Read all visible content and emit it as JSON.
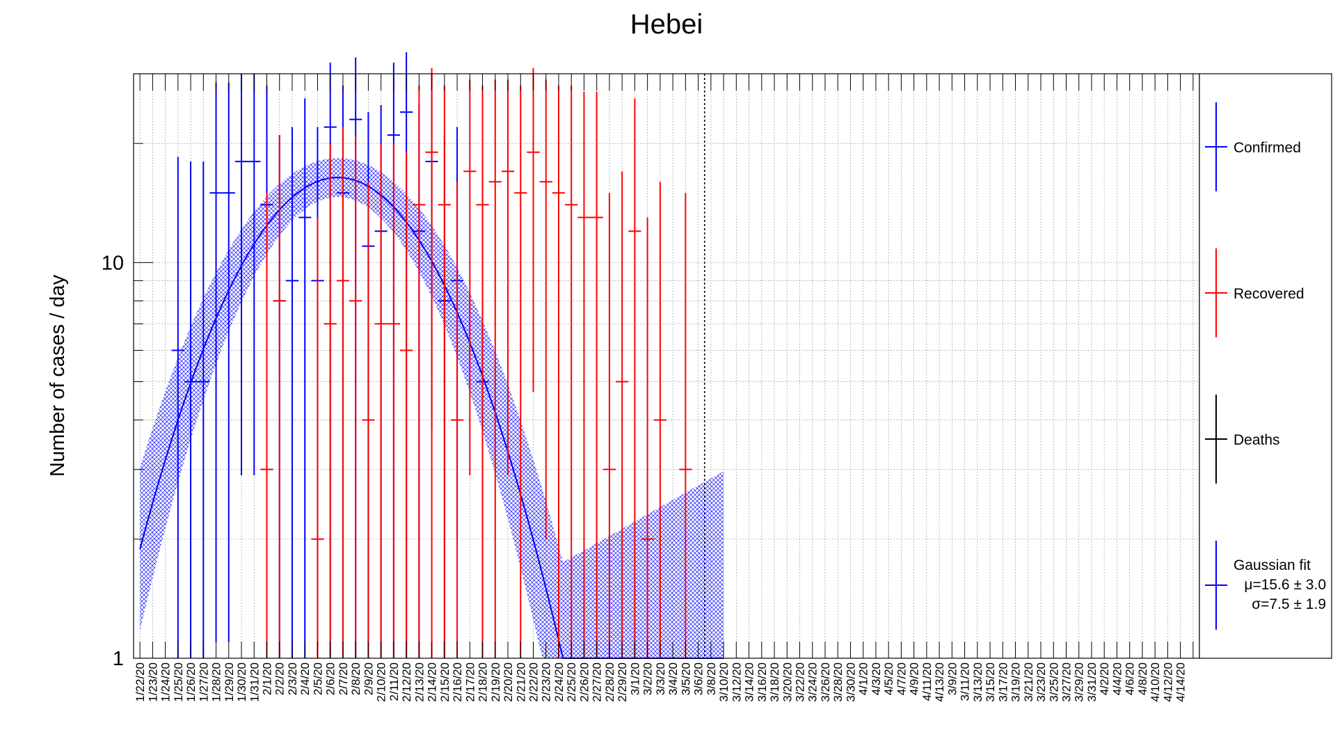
{
  "chart_data": {
    "type": "scatter",
    "title": "Hebei",
    "ylabel": "Number of cases / day",
    "xlabel": "",
    "yscale": "log",
    "ylim": [
      1,
      30
    ],
    "y_tick_labels": [
      "1",
      "10"
    ],
    "grid": true,
    "legend_position": "right",
    "categories": [
      "1/22/20",
      "1/23/20",
      "1/24/20",
      "1/25/20",
      "1/26/20",
      "1/27/20",
      "1/28/20",
      "1/29/20",
      "1/30/20",
      "1/31/20",
      "2/1/20",
      "2/2/20",
      "2/3/20",
      "2/4/20",
      "2/5/20",
      "2/6/20",
      "2/7/20",
      "2/8/20",
      "2/9/20",
      "2/10/20",
      "2/11/20",
      "2/12/20",
      "2/13/20",
      "2/14/20",
      "2/15/20",
      "2/16/20",
      "2/17/20",
      "2/18/20",
      "2/19/20",
      "2/20/20",
      "2/21/20",
      "2/22/20",
      "2/23/20",
      "2/24/20",
      "2/25/20",
      "2/26/20",
      "2/27/20",
      "2/28/20",
      "2/29/20",
      "3/1/20",
      "3/2/20",
      "3/3/20",
      "3/4/20",
      "3/5/20",
      "3/6/20",
      "3/7/20",
      "3/8/20",
      "3/9/20",
      "3/10/20",
      "3/11/20",
      "3/12/20",
      "3/13/20",
      "3/14/20",
      "3/15/20",
      "3/16/20",
      "3/17/20",
      "3/18/20",
      "3/19/20",
      "3/20/20",
      "3/21/20",
      "3/22/20",
      "3/23/20",
      "3/24/20",
      "3/25/20",
      "3/26/20",
      "3/27/20",
      "3/28/20",
      "3/29/20",
      "3/30/20",
      "3/31/20",
      "4/1/20",
      "4/2/20",
      "4/3/20",
      "4/4/20",
      "4/5/20",
      "4/6/20",
      "4/7/20",
      "4/8/20",
      "4/9/20",
      "4/10/20",
      "4/11/20",
      "4/12/20",
      "4/13/20",
      "4/14/20"
    ],
    "x_tick_labels": [
      "1/22/20",
      "1/23/20",
      "1/24/20",
      "1/25/20",
      "1/26/20",
      "1/27/20",
      "1/28/20",
      "1/29/20",
      "1/30/20",
      "1/31/20",
      "2/1/20",
      "2/2/20",
      "2/3/20",
      "2/4/20",
      "2/5/20",
      "2/6/20",
      "2/7/20",
      "2/8/20",
      "2/9/20",
      "2/10/20",
      "2/11/20",
      "2/12/20",
      "2/13/20",
      "2/14/20",
      "2/15/20",
      "2/16/20",
      "2/17/20",
      "2/18/20",
      "2/19/20",
      "2/20/20",
      "2/21/20",
      "2/22/20",
      "2/23/20",
      "2/24/20",
      "2/25/20",
      "2/26/20",
      "2/27/20",
      "2/28/20",
      "2/29/20",
      "3/1/20",
      "3/2/20",
      "3/3/20",
      "3/4/20",
      "3/5/20",
      "3/6/20",
      "3/8/20",
      "3/10/20",
      "3/12/20",
      "3/14/20",
      "3/16/20",
      "3/18/20",
      "3/20/20",
      "3/22/20",
      "3/24/20",
      "3/26/20",
      "3/28/20",
      "3/30/20",
      "4/1/20",
      "4/3/20",
      "4/5/20",
      "4/7/20",
      "4/9/20",
      "4/11/20",
      "4/13/20",
      "3/9/20",
      "3/11/20",
      "3/13/20",
      "3/15/20",
      "3/17/20",
      "3/19/20",
      "3/21/20",
      "3/23/20",
      "3/25/20",
      "3/27/20",
      "3/29/20",
      "3/31/20",
      "4/2/20",
      "4/4/20",
      "4/6/20",
      "4/8/20",
      "4/10/20",
      "4/12/20",
      "4/14/20"
    ],
    "cutoff_date": "3/6/20",
    "series": [
      {
        "name": "Confirmed",
        "color": "#0000ff",
        "points": [
          {
            "x": "1/25/20",
            "y": 6,
            "lo": 1,
            "hi": 18.5
          },
          {
            "x": "1/26/20",
            "y": 5,
            "lo": 1,
            "hi": 18
          },
          {
            "x": "1/27/20",
            "y": 5,
            "lo": 1,
            "hi": 18
          },
          {
            "x": "1/28/20",
            "y": 15,
            "lo": 1.1,
            "hi": 28.5
          },
          {
            "x": "1/29/20",
            "y": 15,
            "lo": 1.1,
            "hi": 28.5
          },
          {
            "x": "1/30/20",
            "y": 18,
            "lo": 2.9,
            "hi": 30
          },
          {
            "x": "1/31/20",
            "y": 18,
            "lo": 2.9,
            "hi": 30
          },
          {
            "x": "2/1/20",
            "y": 14,
            "lo": 1,
            "hi": 28
          },
          {
            "x": "2/2/20",
            "y": 8,
            "lo": 1,
            "hi": 21
          },
          {
            "x": "2/3/20",
            "y": 9,
            "lo": 1,
            "hi": 22
          },
          {
            "x": "2/4/20",
            "y": 13,
            "lo": 1,
            "hi": 26
          },
          {
            "x": "2/5/20",
            "y": 9,
            "lo": 1,
            "hi": 22
          },
          {
            "x": "2/6/20",
            "y": 22,
            "lo": 1,
            "hi": 32
          },
          {
            "x": "2/7/20",
            "y": 15,
            "lo": 1,
            "hi": 28
          },
          {
            "x": "2/8/20",
            "y": 23,
            "lo": 1,
            "hi": 33
          },
          {
            "x": "2/9/20",
            "y": 11,
            "lo": 1,
            "hi": 24
          },
          {
            "x": "2/10/20",
            "y": 12,
            "lo": 1,
            "hi": 25
          },
          {
            "x": "2/11/20",
            "y": 21,
            "lo": 1,
            "hi": 32
          },
          {
            "x": "2/12/20",
            "y": 24,
            "lo": 1,
            "hi": 34
          },
          {
            "x": "2/13/20",
            "y": 12,
            "lo": 1,
            "hi": 25
          },
          {
            "x": "2/14/20",
            "y": 18,
            "lo": 3.8,
            "hi": 30
          },
          {
            "x": "2/15/20",
            "y": 8,
            "lo": 1,
            "hi": 21
          },
          {
            "x": "2/16/20",
            "y": 9,
            "lo": 2,
            "hi": 22
          },
          {
            "x": "2/18/20",
            "y": 5,
            "lo": 1,
            "hi": 18
          }
        ]
      },
      {
        "name": "Recovered",
        "color": "#ff0000",
        "points": [
          {
            "x": "2/1/20",
            "y": 3,
            "lo": 1,
            "hi": 15
          },
          {
            "x": "2/2/20",
            "y": 8,
            "lo": 1,
            "hi": 21
          },
          {
            "x": "2/5/20",
            "y": 2,
            "lo": 1,
            "hi": 13
          },
          {
            "x": "2/6/20",
            "y": 7,
            "lo": 1,
            "hi": 20
          },
          {
            "x": "2/7/20",
            "y": 9,
            "lo": 1,
            "hi": 22
          },
          {
            "x": "2/8/20",
            "y": 8,
            "lo": 1,
            "hi": 21
          },
          {
            "x": "2/9/20",
            "y": 4,
            "lo": 1,
            "hi": 16
          },
          {
            "x": "2/10/20",
            "y": 7,
            "lo": 1,
            "hi": 20
          },
          {
            "x": "2/11/20",
            "y": 7,
            "lo": 1,
            "hi": 20
          },
          {
            "x": "2/12/20",
            "y": 6,
            "lo": 1,
            "hi": 19
          },
          {
            "x": "2/13/20",
            "y": 14,
            "lo": 1,
            "hi": 28
          },
          {
            "x": "2/14/20",
            "y": 19,
            "lo": 1,
            "hi": 31
          },
          {
            "x": "2/15/20",
            "y": 14,
            "lo": 1,
            "hi": 28
          },
          {
            "x": "2/16/20",
            "y": 4,
            "lo": 1,
            "hi": 16
          },
          {
            "x": "2/17/20",
            "y": 17,
            "lo": 2.9,
            "hi": 29
          },
          {
            "x": "2/18/20",
            "y": 14,
            "lo": 1,
            "hi": 28
          },
          {
            "x": "2/19/20",
            "y": 16,
            "lo": 1,
            "hi": 29
          },
          {
            "x": "2/20/20",
            "y": 17,
            "lo": 2.9,
            "hi": 29
          },
          {
            "x": "2/21/20",
            "y": 15,
            "lo": 1,
            "hi": 28
          },
          {
            "x": "2/22/20",
            "y": 19,
            "lo": 4.7,
            "hi": 31
          },
          {
            "x": "2/23/20",
            "y": 16,
            "lo": 2,
            "hi": 29
          },
          {
            "x": "2/24/20",
            "y": 15,
            "lo": 1,
            "hi": 28
          },
          {
            "x": "2/25/20",
            "y": 14,
            "lo": 1,
            "hi": 28
          },
          {
            "x": "2/26/20",
            "y": 13,
            "lo": 1,
            "hi": 27
          },
          {
            "x": "2/27/20",
            "y": 13,
            "lo": 1,
            "hi": 27
          },
          {
            "x": "2/28/20",
            "y": 3,
            "lo": 1,
            "hi": 15
          },
          {
            "x": "2/29/20",
            "y": 5,
            "lo": 1,
            "hi": 17
          },
          {
            "x": "3/1/20",
            "y": 12,
            "lo": 1,
            "hi": 26
          },
          {
            "x": "3/2/20",
            "y": 2,
            "lo": 1,
            "hi": 13
          },
          {
            "x": "3/3/20",
            "y": 4,
            "lo": 1,
            "hi": 16
          },
          {
            "x": "3/5/20",
            "y": 3,
            "lo": 1,
            "hi": 15
          }
        ]
      },
      {
        "name": "Deaths",
        "color": "#000000",
        "points": []
      },
      {
        "name": "Gaussian fit",
        "color": "#0000ff",
        "mu": 15.6,
        "mu_err": 3.0,
        "sigma": 7.5,
        "sigma_err": 1.9,
        "peak": 16.4,
        "x_start": "1/22/20",
        "x_end": "3/8/20"
      }
    ],
    "legend": [
      {
        "label": "Confirmed",
        "color": "#0000ff"
      },
      {
        "label": "Recovered",
        "color": "#ff0000"
      },
      {
        "label": "Deaths",
        "color": "#000000"
      },
      {
        "label": "Gaussian fit",
        "color": "#0000ff",
        "lines": [
          "μ=15.6 ± 3.0",
          "σ=7.5 ± 1.9"
        ]
      }
    ]
  }
}
